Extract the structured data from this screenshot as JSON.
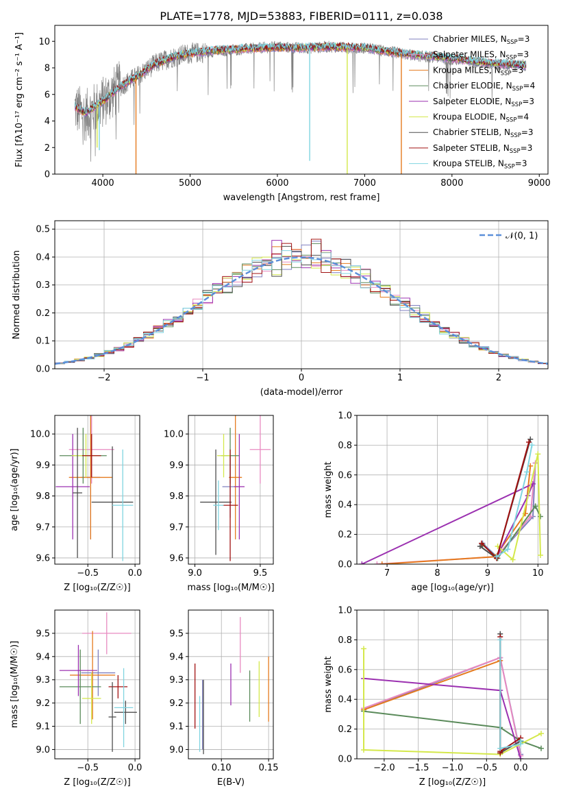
{
  "figure_title": "PLATE=1778, MJD=53883, FIBERID=0111, z=0.038",
  "models": [
    {
      "name": "Chabrier MILES",
      "nssp": "3",
      "color": "#7f7fbf"
    },
    {
      "name": "Salpeter MILES",
      "nssp": "3",
      "color": "#e88ac0"
    },
    {
      "name": "Kroupa MILES",
      "nssp": "3",
      "color": "#e57a1e"
    },
    {
      "name": "Chabrier ELODIE",
      "nssp": "4",
      "color": "#5a8a5a"
    },
    {
      "name": "Salpeter ELODIE",
      "nssp": "3",
      "color": "#9b30b0"
    },
    {
      "name": "Kroupa ELODIE",
      "nssp": "4",
      "color": "#d4e84a"
    },
    {
      "name": "Chabrier STELIB",
      "nssp": "3",
      "color": "#4d4d4d"
    },
    {
      "name": "Salpeter STELIB",
      "nssp": "3",
      "color": "#a01010"
    },
    {
      "name": "Kroupa STELIB",
      "nssp": "3",
      "color": "#7fd4e0"
    }
  ],
  "chart_data": [
    {
      "id": "spectrum",
      "type": "line",
      "xlabel": "wavelength [Angstrom, rest frame]",
      "ylabel": "Flux [fλ10⁻¹⁷ erg cm⁻² s⁻¹ A⁻¹]",
      "xlim": [
        3450,
        9100
      ],
      "ylim": [
        0,
        11.2
      ],
      "xticks": [
        4000,
        5000,
        6000,
        7000,
        8000,
        9000
      ],
      "yticks": [
        0,
        2,
        4,
        6,
        8,
        10
      ],
      "legend": "upper right",
      "data_color": "#808080",
      "data_envelope": [
        [
          3680,
          5.0
        ],
        [
          3800,
          4.4
        ],
        [
          4000,
          5.4
        ],
        [
          4200,
          6.6
        ],
        [
          4400,
          7.4
        ],
        [
          4600,
          8.3
        ],
        [
          4800,
          8.8
        ],
        [
          5000,
          9.1
        ],
        [
          5200,
          9.2
        ],
        [
          5400,
          9.3
        ],
        [
          5600,
          9.4
        ],
        [
          5800,
          9.5
        ],
        [
          6000,
          9.6
        ],
        [
          6200,
          9.5
        ],
        [
          6400,
          9.5
        ],
        [
          6600,
          9.6
        ],
        [
          6800,
          9.5
        ],
        [
          7000,
          9.5
        ],
        [
          7200,
          9.3
        ],
        [
          7400,
          9.1
        ],
        [
          7600,
          8.9
        ],
        [
          7800,
          8.8
        ],
        [
          8000,
          8.6
        ],
        [
          8200,
          8.5
        ],
        [
          8400,
          8.3
        ],
        [
          8600,
          8.2
        ],
        [
          8800,
          8.2
        ],
        [
          8850,
          8.2
        ]
      ],
      "model_curve": [
        [
          3680,
          5.1
        ],
        [
          3800,
          4.6
        ],
        [
          4000,
          5.5
        ],
        [
          4200,
          6.6
        ],
        [
          4400,
          7.4
        ],
        [
          4600,
          8.3
        ],
        [
          4800,
          8.8
        ],
        [
          5000,
          9.1
        ],
        [
          5200,
          9.25
        ],
        [
          5400,
          9.35
        ],
        [
          5600,
          9.45
        ],
        [
          5800,
          9.5
        ],
        [
          6000,
          9.55
        ],
        [
          6200,
          9.5
        ],
        [
          6400,
          9.55
        ],
        [
          6600,
          9.6
        ],
        [
          6800,
          9.55
        ],
        [
          7000,
          9.5
        ],
        [
          7200,
          9.3
        ],
        [
          7400,
          9.1
        ],
        [
          7600,
          8.95
        ],
        [
          7800,
          8.85
        ],
        [
          8000,
          8.7
        ],
        [
          8200,
          8.55
        ],
        [
          8400,
          8.4
        ],
        [
          8600,
          8.3
        ],
        [
          8800,
          8.2
        ],
        [
          8850,
          8.2
        ]
      ],
      "line_dips": [
        {
          "x": 4380,
          "to": 0.0,
          "model": 2
        },
        {
          "x": 7420,
          "to": 0.0,
          "model": 2
        },
        {
          "x": 6800,
          "to": 0.0,
          "model": 5
        },
        {
          "x": 6370,
          "to": 1.0,
          "model": 8
        },
        {
          "x": 3960,
          "to": 1.8,
          "model": 8
        },
        {
          "x": 3935,
          "to": 2.0,
          "model": 5
        }
      ]
    },
    {
      "id": "residuals",
      "type": "histogram",
      "xlabel": "(data-model)/error",
      "ylabel": "Normed distribution",
      "xlim": [
        -2.5,
        2.5
      ],
      "ylim": [
        0,
        0.53
      ],
      "xticks": [
        -2,
        -1,
        0,
        1,
        2
      ],
      "yticks": [
        0.0,
        0.1,
        0.2,
        0.3,
        0.4,
        0.5
      ],
      "bin_width": 0.1,
      "gaussian_label": "𝒩(0, 1)",
      "gaussian_color": "#5b8fd9",
      "legend": "upper right"
    },
    {
      "id": "age_vs_Z",
      "type": "errorbar",
      "xlabel": "Z [log₁₀(Z/Z☉)]",
      "ylabel": "age  [log₁₀(age/yr)]",
      "xlim": [
        -0.85,
        0.05
      ],
      "ylim": [
        9.58,
        10.06
      ],
      "xticks": [
        -0.5,
        0.0
      ],
      "yticks": [
        9.6,
        9.7,
        9.8,
        9.9,
        10.0
      ],
      "points": [
        {
          "x": -0.47,
          "y": 9.86,
          "xerr": 0.1,
          "yerr": 0.2,
          "model": 0
        },
        {
          "x": -0.46,
          "y": 9.95,
          "xerr": 0.24,
          "yerr": 0.11,
          "model": 1
        },
        {
          "x": -0.47,
          "y": 9.86,
          "xerr": 0.23,
          "yerr": 0.2,
          "model": 2
        },
        {
          "x": -0.55,
          "y": 9.93,
          "xerr": 0.25,
          "yerr": 0.09,
          "model": 3
        },
        {
          "x": -0.66,
          "y": 9.83,
          "xerr": 0.18,
          "yerr": 0.17,
          "model": 4
        },
        {
          "x": -0.52,
          "y": 9.93,
          "xerr": 0.15,
          "yerr": 0.07,
          "model": 5
        },
        {
          "x": -0.61,
          "y": 9.81,
          "xerr": 0.05,
          "yerr": 0.21,
          "model": 6
        },
        {
          "x": -0.24,
          "y": 9.78,
          "xerr": 0.22,
          "yerr": 0.18,
          "model": 6
        },
        {
          "x": -0.46,
          "y": 9.93,
          "xerr": 0.1,
          "yerr": 0.07,
          "model": 7
        },
        {
          "x": -0.13,
          "y": 9.77,
          "xerr": 0.11,
          "yerr": 0.18,
          "model": 8
        }
      ]
    },
    {
      "id": "age_vs_mass",
      "type": "errorbar",
      "xlabel": "mass [log₁₀(M/M☉)]",
      "ylabel": "",
      "xlim": [
        8.95,
        9.6
      ],
      "ylim": [
        9.58,
        10.06
      ],
      "xticks": [
        9.0,
        9.5
      ],
      "yticks": [
        9.6,
        9.7,
        9.8,
        9.9,
        10.0
      ],
      "points": [
        {
          "x": 9.27,
          "y": 9.83,
          "xerr": 0.06,
          "yerr": 0.1,
          "model": 0
        },
        {
          "x": 9.5,
          "y": 9.95,
          "xerr": 0.08,
          "yerr": 0.11,
          "model": 1
        },
        {
          "x": 9.31,
          "y": 9.86,
          "xerr": 0.05,
          "yerr": 0.2,
          "model": 2
        },
        {
          "x": 9.27,
          "y": 9.93,
          "xerr": 0.07,
          "yerr": 0.09,
          "model": 3
        },
        {
          "x": 9.34,
          "y": 9.83,
          "xerr": 0.04,
          "yerr": 0.17,
          "model": 4
        },
        {
          "x": 9.22,
          "y": 9.93,
          "xerr": 0.05,
          "yerr": 0.07,
          "model": 5
        },
        {
          "x": 9.16,
          "y": 9.78,
          "xerr": 0.12,
          "yerr": 0.17,
          "model": 6
        },
        {
          "x": 9.27,
          "y": 9.77,
          "xerr": 0.06,
          "yerr": 0.18,
          "model": 7
        },
        {
          "x": 9.18,
          "y": 9.77,
          "xerr": 0.04,
          "yerr": 0.08,
          "model": 8
        }
      ]
    },
    {
      "id": "weight_vs_age",
      "type": "line",
      "xlabel": "age  [log₁₀(age/yr)]",
      "ylabel": "mass weight",
      "xlim": [
        6.4,
        10.2
      ],
      "ylim": [
        0,
        1.0
      ],
      "xticks": [
        7,
        8,
        9,
        10
      ],
      "yticks": [
        0.0,
        0.2,
        0.4,
        0.6,
        0.8,
        1.0
      ],
      "series": [
        {
          "model": 0,
          "x": [
            8.9,
            9.18,
            9.9,
            9.95
          ],
          "y": [
            0.14,
            0.05,
            0.32,
            0.68
          ]
        },
        {
          "model": 1,
          "x": [
            6.8,
            9.18,
            9.85,
            9.95
          ],
          "y": [
            0.0,
            0.05,
            0.32,
            0.68
          ]
        },
        {
          "model": 2,
          "x": [
            6.9,
            9.15,
            9.75,
            9.85
          ],
          "y": [
            0.0,
            0.05,
            0.34,
            0.66
          ]
        },
        {
          "model": 3,
          "x": [
            8.9,
            9.2,
            9.95,
            10.05
          ],
          "y": [
            0.13,
            0.04,
            0.39,
            0.32
          ]
        },
        {
          "model": 4,
          "x": [
            6.5,
            9.9,
            9.8,
            9.18
          ],
          "y": [
            0.0,
            0.54,
            0.46,
            0.05
          ]
        },
        {
          "model": 5,
          "x": [
            9.2,
            9.5,
            10.0,
            10.05
          ],
          "y": [
            0.12,
            0.03,
            0.74,
            0.06
          ]
        },
        {
          "model": 6,
          "x": [
            8.85,
            9.18,
            9.85
          ],
          "y": [
            0.12,
            0.04,
            0.84
          ]
        },
        {
          "model": 7,
          "x": [
            8.88,
            9.18,
            9.82
          ],
          "y": [
            0.14,
            0.04,
            0.82
          ]
        },
        {
          "model": 8,
          "x": [
            9.18,
            9.4,
            9.78,
            9.88
          ],
          "y": [
            0.05,
            0.1,
            0.62,
            0.8
          ]
        }
      ]
    },
    {
      "id": "mass_vs_Z",
      "type": "errorbar",
      "xlabel": "Z [log₁₀(Z/Z☉)]",
      "ylabel": "mass [log₁₀(M/M☉)]",
      "xlim": [
        -0.85,
        0.05
      ],
      "ylim": [
        8.96,
        9.6
      ],
      "xticks": [
        -0.5,
        0.0
      ],
      "yticks": [
        9.0,
        9.1,
        9.2,
        9.3,
        9.4,
        9.5
      ],
      "points": [
        {
          "x": -0.39,
          "y": 9.33,
          "xerr": 0.18,
          "yerr": 0.1,
          "model": 0
        },
        {
          "x": -0.3,
          "y": 9.5,
          "xerr": 0.26,
          "yerr": 0.09,
          "model": 1
        },
        {
          "x": -0.45,
          "y": 9.32,
          "xerr": 0.24,
          "yerr": 0.19,
          "model": 2
        },
        {
          "x": -0.58,
          "y": 9.27,
          "xerr": 0.22,
          "yerr": 0.16,
          "model": 3
        },
        {
          "x": -0.6,
          "y": 9.34,
          "xerr": 0.2,
          "yerr": 0.11,
          "model": 4
        },
        {
          "x": -0.46,
          "y": 9.22,
          "xerr": 0.1,
          "yerr": 0.11,
          "model": 5
        },
        {
          "x": -0.1,
          "y": 9.16,
          "xerr": 0.12,
          "yerr": 0.05,
          "model": 6
        },
        {
          "x": -0.18,
          "y": 9.27,
          "xerr": 0.1,
          "yerr": 0.05,
          "model": 7
        },
        {
          "x": -0.12,
          "y": 9.18,
          "xerr": 0.1,
          "yerr": 0.17,
          "model": 8
        },
        {
          "x": -0.24,
          "y": 9.14,
          "xerr": 0.04,
          "yerr": 0.15,
          "model": 6
        }
      ]
    },
    {
      "id": "mass_vs_EBV",
      "type": "errorbar",
      "xlabel": "E(B-V)",
      "ylabel": "",
      "xlim": [
        0.065,
        0.155
      ],
      "ylim": [
        8.96,
        9.6
      ],
      "xticks": [
        0.1,
        0.15
      ],
      "yticks": [
        9.0,
        9.1,
        9.2,
        9.3,
        9.4,
        9.5
      ],
      "points": [
        {
          "x": 0.08,
          "y": 9.15,
          "xerr": 0,
          "yerr": 0.15,
          "model": 0
        },
        {
          "x": 0.12,
          "y": 9.45,
          "xerr": 0,
          "yerr": 0.12,
          "model": 1
        },
        {
          "x": 0.15,
          "y": 9.26,
          "xerr": 0,
          "yerr": 0.14,
          "model": 2
        },
        {
          "x": 0.13,
          "y": 9.23,
          "xerr": 0,
          "yerr": 0.11,
          "model": 3
        },
        {
          "x": 0.11,
          "y": 9.28,
          "xerr": 0,
          "yerr": 0.09,
          "model": 4
        },
        {
          "x": 0.14,
          "y": 9.26,
          "xerr": 0,
          "yerr": 0.12,
          "model": 5
        },
        {
          "x": 0.081,
          "y": 9.14,
          "xerr": 0,
          "yerr": 0.16,
          "model": 6
        },
        {
          "x": 0.072,
          "y": 9.23,
          "xerr": 0,
          "yerr": 0.14,
          "model": 7
        },
        {
          "x": 0.077,
          "y": 9.11,
          "xerr": 0,
          "yerr": 0.12,
          "model": 8
        }
      ]
    },
    {
      "id": "weight_vs_Z",
      "type": "line",
      "xlabel": "Z [log₁₀(Z/Z☉)]",
      "ylabel": "mass weight",
      "xlim": [
        -2.4,
        0.4
      ],
      "ylim": [
        0,
        1.0
      ],
      "xticks": [
        -2.0,
        -1.5,
        -1.0,
        -0.5,
        0.0
      ],
      "yticks": [
        0.0,
        0.2,
        0.4,
        0.6,
        0.8,
        1.0
      ],
      "series": [
        {
          "model": 0,
          "x": [
            -2.3,
            -0.3,
            0.0
          ],
          "y": [
            0.33,
            0.68,
            0.03
          ]
        },
        {
          "model": 1,
          "x": [
            -2.3,
            -0.3,
            0.0
          ],
          "y": [
            0.34,
            0.68,
            0.02
          ]
        },
        {
          "model": 2,
          "x": [
            -2.3,
            -0.3,
            -0.3
          ],
          "y": [
            0.33,
            0.66,
            0.04
          ]
        },
        {
          "model": 3,
          "x": [
            -2.3,
            -0.3,
            0.0,
            0.3
          ],
          "y": [
            0.32,
            0.21,
            0.12,
            0.07
          ]
        },
        {
          "model": 4,
          "x": [
            -2.3,
            -0.3,
            0.0
          ],
          "y": [
            0.54,
            0.46,
            0.0
          ]
        },
        {
          "model": 5,
          "x": [
            -2.3,
            -2.3,
            -0.3,
            0.3
          ],
          "y": [
            0.74,
            0.06,
            0.03,
            0.17
          ]
        },
        {
          "model": 6,
          "x": [
            -0.3,
            -0.3,
            -0.3,
            0.0
          ],
          "y": [
            0.84,
            0.04,
            0.04,
            0.12
          ]
        },
        {
          "model": 7,
          "x": [
            -0.3,
            -0.3,
            -0.3,
            0.0
          ],
          "y": [
            0.82,
            0.04,
            0.05,
            0.14
          ]
        },
        {
          "model": 8,
          "x": [
            -0.3,
            -0.3,
            0.0,
            0.0
          ],
          "y": [
            0.8,
            0.07,
            0.1,
            0.12
          ]
        }
      ]
    }
  ]
}
